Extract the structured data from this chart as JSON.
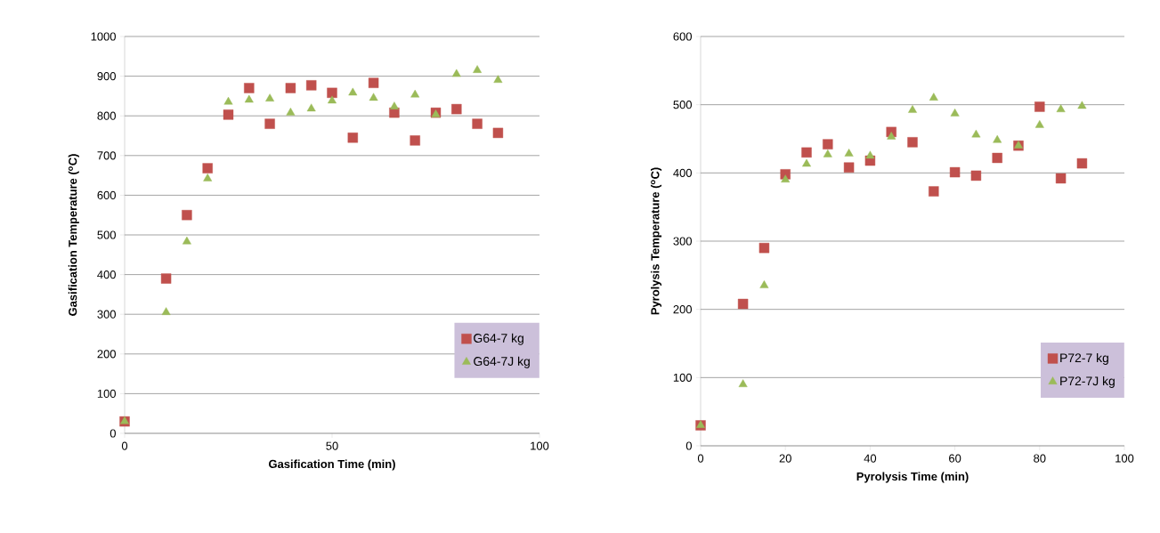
{
  "chart_data": [
    {
      "type": "scatter",
      "xlabel": "Gasification Time (min)",
      "ylabel": "Gasification Temperature ($^{o}$C)",
      "xlim": [
        0,
        100
      ],
      "xticks": [
        0,
        50,
        100
      ],
      "ylim": [
        0,
        1000
      ],
      "yticks": [
        0,
        100,
        200,
        300,
        400,
        500,
        600,
        700,
        800,
        900,
        1000
      ],
      "grid": "y",
      "legend": "bottom right",
      "series": [
        {
          "name": "G64-7 kg",
          "color": "#c0504d",
          "marker": "square",
          "x": [
            0,
            10,
            15,
            20,
            25,
            30,
            35,
            40,
            45,
            50,
            55,
            60,
            65,
            70,
            75,
            80,
            85,
            90
          ],
          "values": [
            30,
            390,
            550,
            668,
            803,
            870,
            780,
            870,
            877,
            858,
            745,
            883,
            808,
            738,
            808,
            817,
            780,
            757
          ]
        },
        {
          "name": "G64-7J kg",
          "color": "#9bbb59",
          "marker": "triangle",
          "x": [
            0,
            10,
            15,
            20,
            25,
            30,
            35,
            40,
            45,
            50,
            55,
            60,
            65,
            70,
            75,
            80,
            85,
            90
          ],
          "values": [
            30,
            305,
            483,
            642,
            835,
            840,
            843,
            808,
            818,
            838,
            858,
            845,
            823,
            853,
            803,
            905,
            915,
            890
          ]
        }
      ]
    },
    {
      "type": "scatter",
      "xlabel": "Pyrolysis Time (min)",
      "ylabel": "Pyrolysis Temperature ($^{o}$C)",
      "xlim": [
        0,
        100
      ],
      "xticks": [
        0,
        20,
        40,
        60,
        80,
        100
      ],
      "ylim": [
        0,
        600
      ],
      "yticks": [
        0,
        100,
        200,
        300,
        400,
        500,
        600
      ],
      "grid": "y",
      "legend": "bottom right",
      "series": [
        {
          "name": "P72-7 kg",
          "color": "#c0504d",
          "marker": "square",
          "x": [
            0,
            10,
            15,
            20,
            25,
            30,
            35,
            40,
            45,
            50,
            55,
            60,
            65,
            70,
            75,
            80,
            85,
            90
          ],
          "values": [
            30,
            208,
            290,
            398,
            430,
            442,
            408,
            418,
            460,
            445,
            373,
            401,
            396,
            422,
            440,
            497,
            392,
            414
          ]
        },
        {
          "name": "P72-7J kg",
          "color": "#9bbb59",
          "marker": "triangle",
          "x": [
            0,
            10,
            15,
            20,
            25,
            30,
            35,
            40,
            45,
            50,
            55,
            60,
            65,
            70,
            75,
            80,
            85,
            90
          ],
          "values": [
            30,
            90,
            235,
            390,
            413,
            427,
            428,
            425,
            453,
            492,
            510,
            487,
            456,
            448,
            440,
            470,
            493,
            498
          ]
        }
      ]
    }
  ]
}
